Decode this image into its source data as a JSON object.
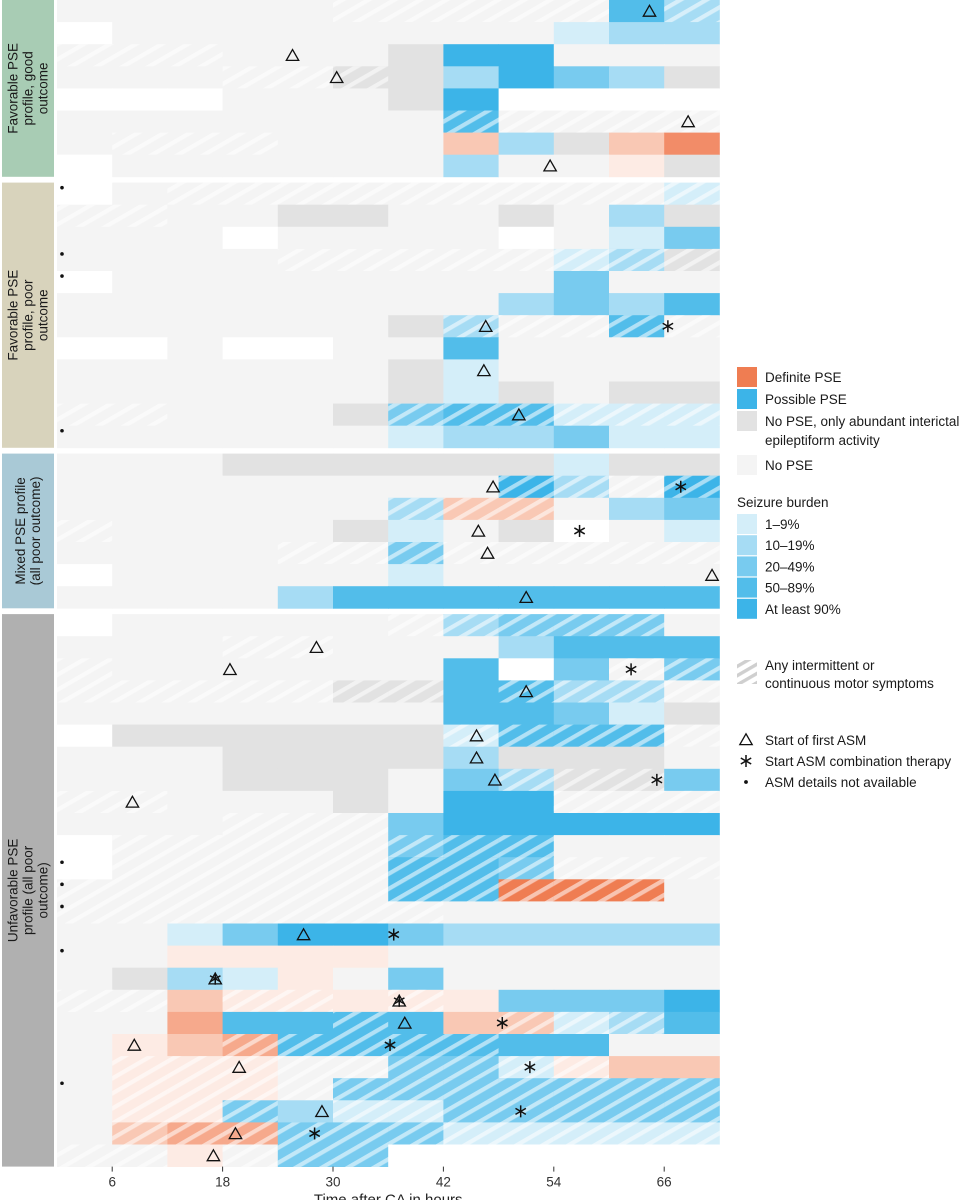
{
  "chart_data": {
    "type": "heatmap",
    "title": "",
    "xlabel": "Time after CA in hours",
    "x_ticks": [
      6,
      18,
      30,
      42,
      54,
      66
    ],
    "x_range_hours": [
      0,
      72
    ],
    "bin_width_hours": 6,
    "groups": [
      {
        "label_lines": [
          "Favorable PSE",
          "profile, good",
          "outcome"
        ],
        "color": "#a8ccb4",
        "rows": 8
      },
      {
        "label_lines": [
          "Favorable PSE",
          "profile, poor",
          "outcome"
        ],
        "color": "#d8d3bc",
        "rows": 12
      },
      {
        "label_lines": [
          "Mixed PSE profile",
          "(all poor outcome)"
        ],
        "color": "#a9c9d6",
        "rows": 7
      },
      {
        "label_lines": [
          "Unfavorable PSE",
          "profile (all poor",
          "outcome)"
        ],
        "color": "#b0b0b0",
        "rows": 25
      }
    ],
    "state_legend": {
      "title": "",
      "items": [
        {
          "key": "D",
          "label_lines": [
            "Definite PSE"
          ],
          "color": "#ef7d52"
        },
        {
          "key": "P",
          "label_lines": [
            "Possible PSE"
          ],
          "color": "#3cb4e8"
        },
        {
          "key": "I",
          "label_lines": [
            "No PSE, only abundant interictal",
            "epileptiform activity"
          ],
          "color": "#e2e2e2"
        },
        {
          "key": "N",
          "label_lines": [
            "No PSE"
          ],
          "color": "#f4f4f4"
        }
      ]
    },
    "burden_legend": {
      "title": "Seizure burden",
      "items": [
        {
          "level": 1,
          "label": "1–9%"
        },
        {
          "level": 2,
          "label": "10–19%"
        },
        {
          "level": 3,
          "label": "20–49%"
        },
        {
          "level": 4,
          "label": "50–89%"
        },
        {
          "level": 5,
          "label": "At least 90%"
        }
      ]
    },
    "motor_legend": {
      "label_lines": [
        "Any intermittent or",
        "continuous motor symptoms"
      ]
    },
    "marker_legend": [
      {
        "type": "triangle",
        "label": "Start of first ASM"
      },
      {
        "type": "asterisk",
        "label": "Start ASM combination therapy"
      },
      {
        "type": "dot",
        "label": "ASM details not available"
      }
    ],
    "state_colors": {
      "D": [
        "#fdebe4",
        "#f9c8b4",
        "#f6a98c",
        "#f28c68",
        "#ef7d52"
      ],
      "P": [
        "#d4eef9",
        "#a6dcf4",
        "#78cbef",
        "#52bdea",
        "#3cb4e8"
      ],
      "I": "#e2e2e2",
      "N": "#f4f4f4",
      "E": "#ffffff"
    },
    "rows": [
      "N N N N N N* N* N* N* N* P4 P2*",
      "E N N N N N N N N P1 P2 P2",
      "N* N* N* N N N I P5 P5 N N N",
      "N N N N* N* I* I P2 P5 P3 P2 I",
      "E E E N N N I P5 E E E E",
      "N N N N N N N P4* N* N* N* N*",
      "N N* N* N* N N N D2 P2 I D2 D4",
      "E N N N N N N P2 N N D1 I",
      "E N N* N* N* N* N* N* N* N* N* P1*",
      "N* N* N N I I N N I N P2 I",
      "N N N E N N N N E N P1 P3",
      "N N N N N* N* N* N* N* P1* P2* I*",
      "E N N N N N N N N P3 N N",
      "N N N N N N N N P2 P3 P2 P4",
      "N N N N N N I P2* N* N* P4* N*",
      "E E N E E N N P4 N N N N",
      "N N N N N N I P1 N N N N",
      "N N N N N N I P1 I N I I",
      "N* N* N N N I P3* P4* P4* P1* P1* P1*",
      "N N N N N N P1 P2 P2 P3 P1 P1",
      "N N N I I I I I I P1 I I",
      "N N N N N N N N P5* P2* N* P5*",
      "N N N N N N P2* D2* D2* N P2 P3",
      "N* N N N N I P1 N I E N P1",
      "N N N N N* N* P3* N* N* N* N* N*",
      "E N N N N N P1 N N N N N",
      "N N N N P2 P4 P4 P4 P4 P4 P4 P4",
      "E N N N N N N* P2* P3* P3* P3* N",
      "N N N N* N* N N N P2 P4 P4 P4",
      "N* N N N N N N P4 E P3 N* P3*",
      "N* N* N* N* N* I* I* P4 P4* P2* P2* N*",
      "N N N N N N N P4 P4 P3 P1 I",
      "E I I I I I I P1* P4* P4* P4* N*",
      "N N N I I I I P2 I I I N",
      "N N N I I I N P3 P2* I* I* P3",
      "N* N* N N N I N P5 P5 N* N* N*",
      "N N N N* N* N* P3 P5 P5 P5 P5 P5",
      "E N* N* N* N* N* P3* P4* P4* N N N",
      "E N* N* N* N* N* P4* P4* P3* N* N* N*",
      "N* N* N* N* N* N* P4* P4* D5* D5* D5* N",
      "N* N* N* N* N* N* N* N N N N N",
      "N N P1 P3 P5 P5 P3 P2 P2 P2 P2 P2",
      "N N D1 D1 D1 D1 N N N N N N",
      "N I P2 P1 D1 N P3 N N N N N",
      "N* N* D2 D1* D1* D1 D1* D1 P3 P3 P3 P5",
      "N N D3 P4 P4 P4* P4 D2 D2* P1* P2* P4",
      "N D1 D2 D3* P4* P4* P4* P4* P4 P4 N N",
      "N D1* D1* D1* N* N* P3* P3* P1* D1* D2 D2",
      "N D1* D1* D1* N* P3* P3* P3* P3* P3* P3* P3*",
      "N D1* D1* P3* P2 P1* P1* P3* P3* P3* P3* P3*",
      "N D2* D3* D3* P3* P3* P3* P1* P1* P1* P1* P1*",
      "N* N* D1 N* P3* P3* E E E E E E"
    ],
    "markers": [
      {
        "type": "triangle",
        "row": 0,
        "x": 64.4
      },
      {
        "type": "triangle",
        "row": 2,
        "x": 25.6
      },
      {
        "type": "triangle",
        "row": 3,
        "x": 30.4
      },
      {
        "type": "triangle",
        "row": 5,
        "x": 68.6
      },
      {
        "type": "triangle",
        "row": 7,
        "x": 53.6
      },
      {
        "type": "triangle",
        "row": 14,
        "x": 46.6
      },
      {
        "type": "asterisk",
        "row": 14,
        "x": 66.4
      },
      {
        "type": "triangle",
        "row": 16,
        "x": 46.4
      },
      {
        "type": "triangle",
        "row": 18,
        "x": 50.2
      },
      {
        "type": "triangle",
        "row": 21,
        "x": 47.4
      },
      {
        "type": "asterisk",
        "row": 21,
        "x": 67.8
      },
      {
        "type": "triangle",
        "row": 23,
        "x": 45.8
      },
      {
        "type": "asterisk",
        "row": 23,
        "x": 56.8
      },
      {
        "type": "triangle",
        "row": 24,
        "x": 46.8
      },
      {
        "type": "triangle",
        "row": 25,
        "x": 71.2
      },
      {
        "type": "triangle",
        "row": 26,
        "x": 51.0
      },
      {
        "type": "triangle",
        "row": 28,
        "x": 28.2
      },
      {
        "type": "triangle",
        "row": 29,
        "x": 18.8
      },
      {
        "type": "asterisk",
        "row": 29,
        "x": 62.4
      },
      {
        "type": "triangle",
        "row": 30,
        "x": 51.0
      },
      {
        "type": "triangle",
        "row": 32,
        "x": 45.6
      },
      {
        "type": "triangle",
        "row": 33,
        "x": 45.6
      },
      {
        "type": "triangle",
        "row": 34,
        "x": 47.6
      },
      {
        "type": "asterisk",
        "row": 34,
        "x": 65.2
      },
      {
        "type": "triangle",
        "row": 35,
        "x": 8.2
      },
      {
        "type": "triangle",
        "row": 41,
        "x": 26.8
      },
      {
        "type": "asterisk",
        "row": 41,
        "x": 36.6
      },
      {
        "type": "triangle",
        "row": 43,
        "x": 17.2
      },
      {
        "type": "asterisk",
        "row": 43,
        "x": 17.2
      },
      {
        "type": "triangle",
        "row": 44,
        "x": 37.2
      },
      {
        "type": "asterisk",
        "row": 44,
        "x": 37.2
      },
      {
        "type": "triangle",
        "row": 45,
        "x": 37.8
      },
      {
        "type": "asterisk",
        "row": 45,
        "x": 48.4
      },
      {
        "type": "triangle",
        "row": 46,
        "x": 8.4
      },
      {
        "type": "asterisk",
        "row": 46,
        "x": 36.2
      },
      {
        "type": "triangle",
        "row": 47,
        "x": 19.8
      },
      {
        "type": "asterisk",
        "row": 47,
        "x": 51.4
      },
      {
        "type": "triangle",
        "row": 49,
        "x": 28.8
      },
      {
        "type": "asterisk",
        "row": 49,
        "x": 50.4
      },
      {
        "type": "triangle",
        "row": 50,
        "x": 19.4
      },
      {
        "type": "asterisk",
        "row": 50,
        "x": 28.0
      },
      {
        "type": "triangle",
        "row": 51,
        "x": 17.0
      },
      {
        "type": "dot",
        "row": 8,
        "x": -0.6
      },
      {
        "type": "dot",
        "row": 11,
        "x": -0.6
      },
      {
        "type": "dot",
        "row": 12,
        "x": -0.6
      },
      {
        "type": "dot",
        "row": 19,
        "x": -0.6
      },
      {
        "type": "dot",
        "row": 38,
        "x": -0.6
      },
      {
        "type": "dot",
        "row": 39,
        "x": -0.6
      },
      {
        "type": "dot",
        "row": 40,
        "x": -0.6
      },
      {
        "type": "dot",
        "row": 42,
        "x": -0.6
      },
      {
        "type": "dot",
        "row": 48,
        "x": -0.6
      }
    ]
  }
}
